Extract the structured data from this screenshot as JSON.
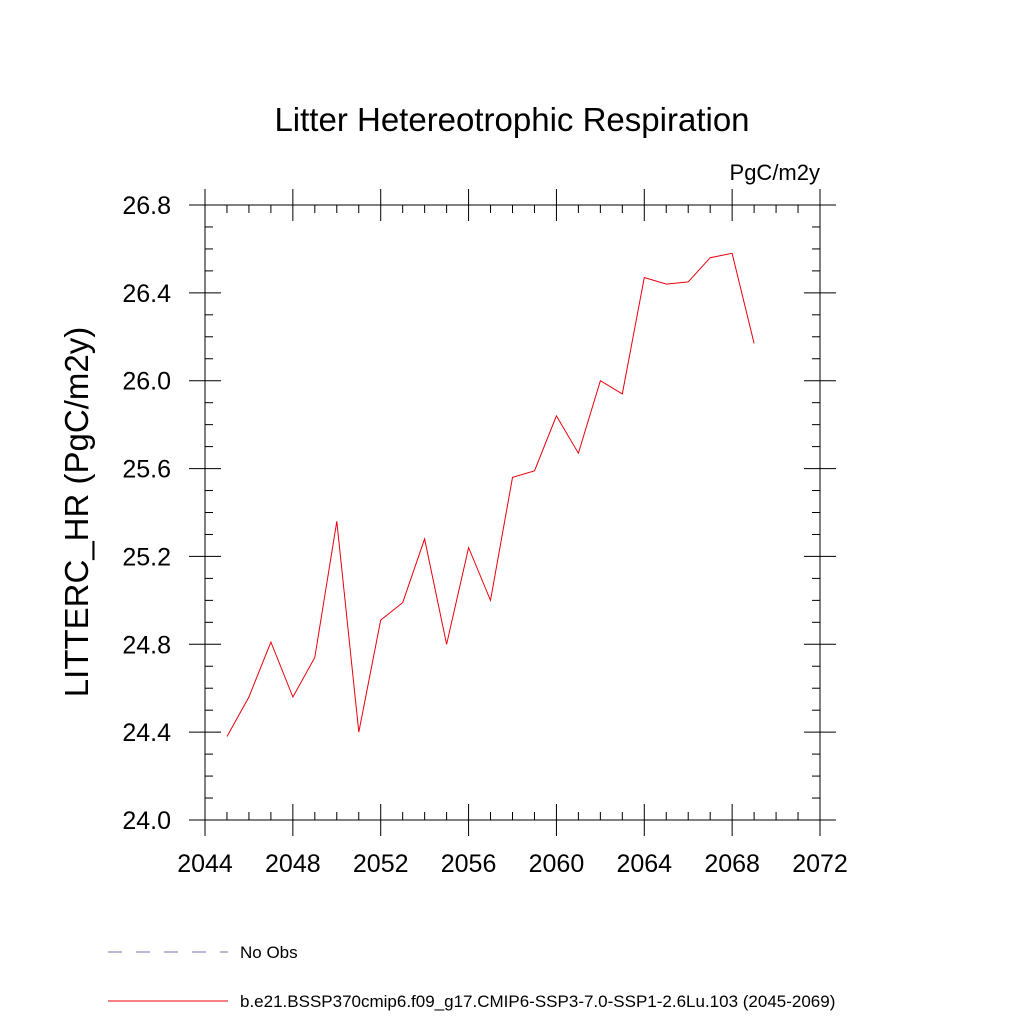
{
  "chart_data": {
    "type": "line",
    "title": "Litter Hetereotrophic Respiration",
    "units_label": "PgC/m2y",
    "xlabel": "",
    "ylabel": "LITTERC_HR  (PgC/m2y)",
    "xlim": [
      2044,
      2072
    ],
    "ylim": [
      24.0,
      26.8
    ],
    "x_ticks": [
      2044,
      2048,
      2052,
      2056,
      2060,
      2064,
      2068,
      2072
    ],
    "x_tick_labels": [
      "2044",
      "2048",
      "2052",
      "2056",
      "2060",
      "2064",
      "2068",
      "2072"
    ],
    "y_ticks": [
      24.0,
      24.4,
      24.8,
      25.2,
      25.6,
      26.0,
      26.4,
      26.8
    ],
    "y_tick_labels": [
      "24.0",
      "24.4",
      "24.8",
      "25.2",
      "25.6",
      "26.0",
      "26.4",
      "26.8"
    ],
    "grid": false,
    "legend_position": "bottom",
    "series": [
      {
        "name": "b.e21.BSSP370cmip6.f09_g17.CMIP6-SSP3-7.0-SSP1-2.6Lu.103 (2045-2069)",
        "color": "#e8000b",
        "style": "solid",
        "x": [
          2045,
          2046,
          2047,
          2048,
          2049,
          2050,
          2051,
          2052,
          2053,
          2054,
          2055,
          2056,
          2057,
          2058,
          2059,
          2060,
          2061,
          2062,
          2063,
          2064,
          2065,
          2066,
          2067,
          2068,
          2069
        ],
        "y": [
          24.38,
          24.56,
          24.81,
          24.56,
          24.74,
          25.36,
          24.4,
          24.91,
          24.99,
          25.28,
          24.8,
          25.24,
          25.0,
          25.56,
          25.59,
          25.84,
          25.67,
          26.0,
          25.94,
          26.47,
          26.44,
          26.45,
          26.56,
          26.58,
          26.17
        ]
      }
    ],
    "legend": [
      {
        "label": "No Obs",
        "color": "#7a6fb0",
        "style": "dashed"
      },
      {
        "label": "b.e21.BSSP370cmip6.f09_g17.CMIP6-SSP3-7.0-SSP1-2.6Lu.103 (2045-2069)",
        "color": "#e8000b",
        "style": "solid"
      }
    ]
  }
}
